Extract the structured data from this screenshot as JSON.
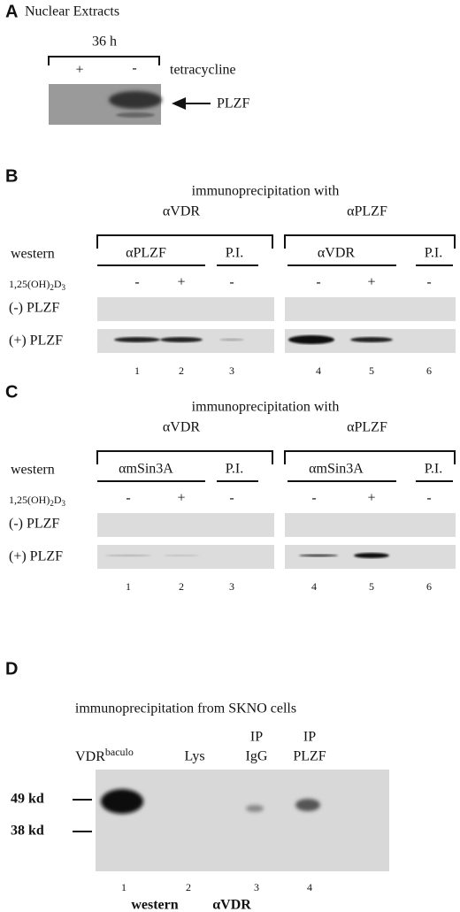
{
  "panel_a": {
    "letter": "A",
    "title": "Nuclear Extracts",
    "time": "36 h",
    "lanes": [
      "+",
      "-"
    ],
    "treatment": "tetracycline",
    "band_label": "PLZF"
  },
  "panel_b": {
    "letter": "B",
    "heading": "immunoprecipitation with",
    "ip_groups": [
      "αVDR",
      "αPLZF"
    ],
    "western_label": "western",
    "antibodies": [
      "αPLZF",
      "P.I.",
      "αVDR",
      "P.I."
    ],
    "treatment": [
      "1,25(OH)",
      "2",
      "D",
      "3"
    ],
    "signs": [
      "-",
      "+",
      "-",
      "-",
      "+",
      "-"
    ],
    "rows": [
      "(-) PLZF",
      "(+) PLZF"
    ],
    "lanes": [
      1,
      2,
      3,
      4,
      5,
      6
    ]
  },
  "panel_c": {
    "letter": "C",
    "heading": "immunoprecipitation with",
    "ip_groups": [
      "αVDR",
      "αPLZF"
    ],
    "western_label": "western",
    "antibodies": [
      "αmSin3A",
      "P.I.",
      "αmSin3A",
      "P.I."
    ],
    "treatment": [
      "1,25(OH)",
      "2",
      "D",
      "3"
    ],
    "signs": [
      "-",
      "+",
      "-",
      "-",
      "+",
      "-"
    ],
    "rows": [
      "(-) PLZF",
      "(+) PLZF"
    ],
    "lanes": [
      1,
      2,
      3,
      4,
      5,
      6
    ]
  },
  "panel_d": {
    "letter": "D",
    "heading": "immunoprecipitation from SKNO cells",
    "lane_labels": [
      [
        "VDR",
        "baculo"
      ],
      [
        "Lys"
      ],
      [
        "IP",
        "IgG"
      ],
      [
        "IP",
        "PLZF"
      ]
    ],
    "markers": [
      "49 kd",
      "38 kd"
    ],
    "lanes": [
      1,
      2,
      3,
      4
    ],
    "footer": [
      "western",
      "αVDR"
    ]
  }
}
